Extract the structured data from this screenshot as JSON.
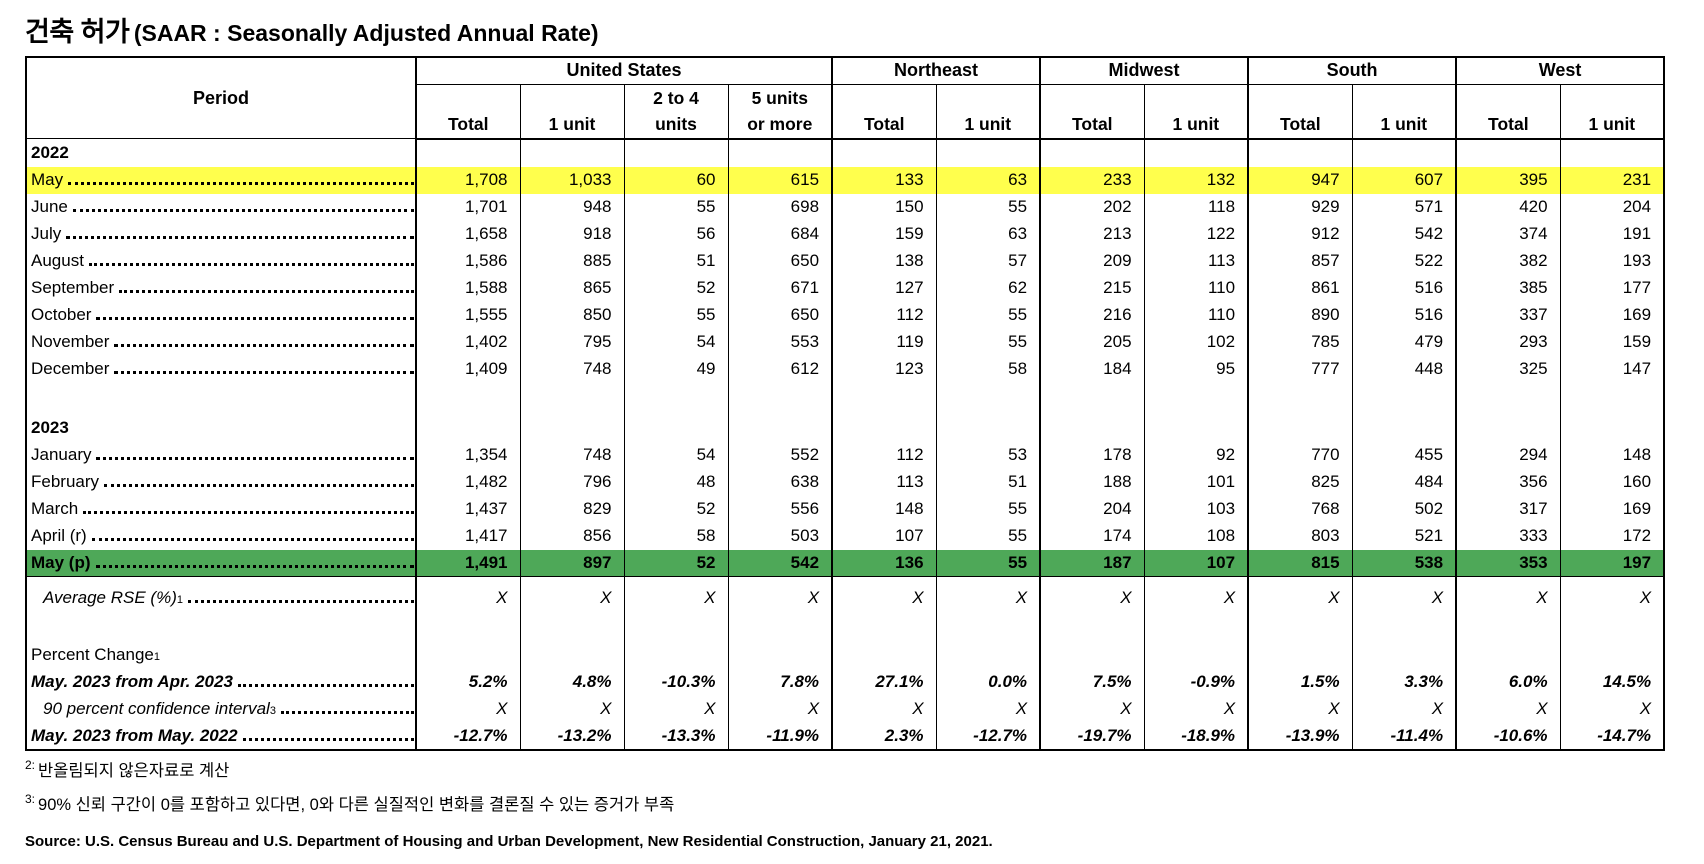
{
  "title": {
    "korean": "건축 허가",
    "latin": "(SAAR : Seasonally Adjusted Annual Rate)"
  },
  "highlight_colors": {
    "yellow": "#FFFF4D",
    "green": "#4EA858"
  },
  "table": {
    "period_header": "Period",
    "groups": [
      {
        "label": "United States"
      },
      {
        "label": "Northeast"
      },
      {
        "label": "Midwest"
      },
      {
        "label": "South"
      },
      {
        "label": "West"
      }
    ],
    "columns": [
      "Total",
      "1 unit",
      "2 to 4\nunits",
      "5 units\nor more",
      "Total",
      "1 unit",
      "Total",
      "1 unit",
      "Total",
      "1 unit",
      "Total",
      "1 unit"
    ],
    "rows": [
      {
        "type": "section",
        "label": "2022",
        "bold": true
      },
      {
        "type": "data",
        "label": "May",
        "highlight": "yellow",
        "leader": true,
        "values": [
          "1,708",
          "1,033",
          "60",
          "615",
          "133",
          "63",
          "233",
          "132",
          "947",
          "607",
          "395",
          "231"
        ]
      },
      {
        "type": "data",
        "label": "June",
        "leader": true,
        "values": [
          "1,701",
          "948",
          "55",
          "698",
          "150",
          "55",
          "202",
          "118",
          "929",
          "571",
          "420",
          "204"
        ]
      },
      {
        "type": "data",
        "label": "July",
        "leader": true,
        "values": [
          "1,658",
          "918",
          "56",
          "684",
          "159",
          "63",
          "213",
          "122",
          "912",
          "542",
          "374",
          "191"
        ]
      },
      {
        "type": "data",
        "label": "August",
        "leader": true,
        "values": [
          "1,586",
          "885",
          "51",
          "650",
          "138",
          "57",
          "209",
          "113",
          "857",
          "522",
          "382",
          "193"
        ]
      },
      {
        "type": "data",
        "label": "September",
        "leader": true,
        "values": [
          "1,588",
          "865",
          "52",
          "671",
          "127",
          "62",
          "215",
          "110",
          "861",
          "516",
          "385",
          "177"
        ]
      },
      {
        "type": "data",
        "label": "October",
        "leader": true,
        "values": [
          "1,555",
          "850",
          "55",
          "650",
          "112",
          "55",
          "216",
          "110",
          "890",
          "516",
          "337",
          "169"
        ]
      },
      {
        "type": "data",
        "label": "November",
        "leader": true,
        "values": [
          "1,402",
          "795",
          "54",
          "553",
          "119",
          "55",
          "205",
          "102",
          "785",
          "479",
          "293",
          "159"
        ]
      },
      {
        "type": "data",
        "label": "December",
        "leader": true,
        "values": [
          "1,409",
          "748",
          "49",
          "612",
          "123",
          "58",
          "184",
          "95",
          "777",
          "448",
          "325",
          "147"
        ]
      },
      {
        "type": "blank"
      },
      {
        "type": "section",
        "label": "2023",
        "bold": true
      },
      {
        "type": "data",
        "label": "January",
        "leader": true,
        "values": [
          "1,354",
          "748",
          "54",
          "552",
          "112",
          "53",
          "178",
          "92",
          "770",
          "455",
          "294",
          "148"
        ]
      },
      {
        "type": "data",
        "label": "February",
        "leader": true,
        "values": [
          "1,482",
          "796",
          "48",
          "638",
          "113",
          "51",
          "188",
          "101",
          "825",
          "484",
          "356",
          "160"
        ]
      },
      {
        "type": "data",
        "label": "March",
        "leader": true,
        "values": [
          "1,437",
          "829",
          "52",
          "556",
          "148",
          "55",
          "204",
          "103",
          "768",
          "502",
          "317",
          "169"
        ]
      },
      {
        "type": "data",
        "label": "April (r)",
        "leader": true,
        "values": [
          "1,417",
          "856",
          "58",
          "503",
          "107",
          "55",
          "174",
          "108",
          "803",
          "521",
          "333",
          "172"
        ]
      },
      {
        "type": "data",
        "label": "May (p)",
        "highlight": "green",
        "bold": true,
        "bottomline": true,
        "leader": true,
        "values": [
          "1,491",
          "897",
          "52",
          "542",
          "136",
          "55",
          "187",
          "107",
          "815",
          "538",
          "353",
          "197"
        ]
      },
      {
        "type": "data",
        "label": "Average RSE (%)",
        "sup": "1",
        "italic": true,
        "indent": true,
        "leader": true,
        "rowclass": "r-rse",
        "values": [
          "X",
          "X",
          "X",
          "X",
          "X",
          "X",
          "X",
          "X",
          "X",
          "X",
          "X",
          "X"
        ]
      },
      {
        "type": "blank",
        "rowclass": "r-blank2"
      },
      {
        "type": "section",
        "label": "Percent Change",
        "sup": "1",
        "bold": false
      },
      {
        "type": "data",
        "label": "May. 2023 from Apr. 2023",
        "bolditalic": true,
        "leader": true,
        "values": [
          "5.2%",
          "4.8%",
          "-10.3%",
          "7.8%",
          "27.1%",
          "0.0%",
          "7.5%",
          "-0.9%",
          "1.5%",
          "3.3%",
          "6.0%",
          "14.5%"
        ]
      },
      {
        "type": "data",
        "label": "90 percent confidence interval",
        "sup": "3",
        "italic": true,
        "indent": true,
        "leader": true,
        "values": [
          "X",
          "X",
          "X",
          "X",
          "X",
          "X",
          "X",
          "X",
          "X",
          "X",
          "X",
          "X"
        ]
      },
      {
        "type": "data",
        "label": "May. 2023 from May. 2022",
        "bolditalic": true,
        "leader": true,
        "values": [
          "-12.7%",
          "-13.2%",
          "-13.3%",
          "-11.9%",
          "2.3%",
          "-12.7%",
          "-19.7%",
          "-18.9%",
          "-13.9%",
          "-11.4%",
          "-10.6%",
          "-14.7%"
        ]
      }
    ]
  },
  "footnotes": [
    {
      "marker": "2:",
      "text": "반올림되지 않은자료로 계산"
    },
    {
      "marker": "3:",
      "text": "90% 신뢰 구간이 0를 포함하고 있다면, 0와 다른 실질적인 변화를 결론질 수 있는 증거가 부족"
    }
  ],
  "source": "Source: U.S. Census Bureau and U.S. Department of Housing and Urban Development, New Residential Construction, January 21, 2021."
}
